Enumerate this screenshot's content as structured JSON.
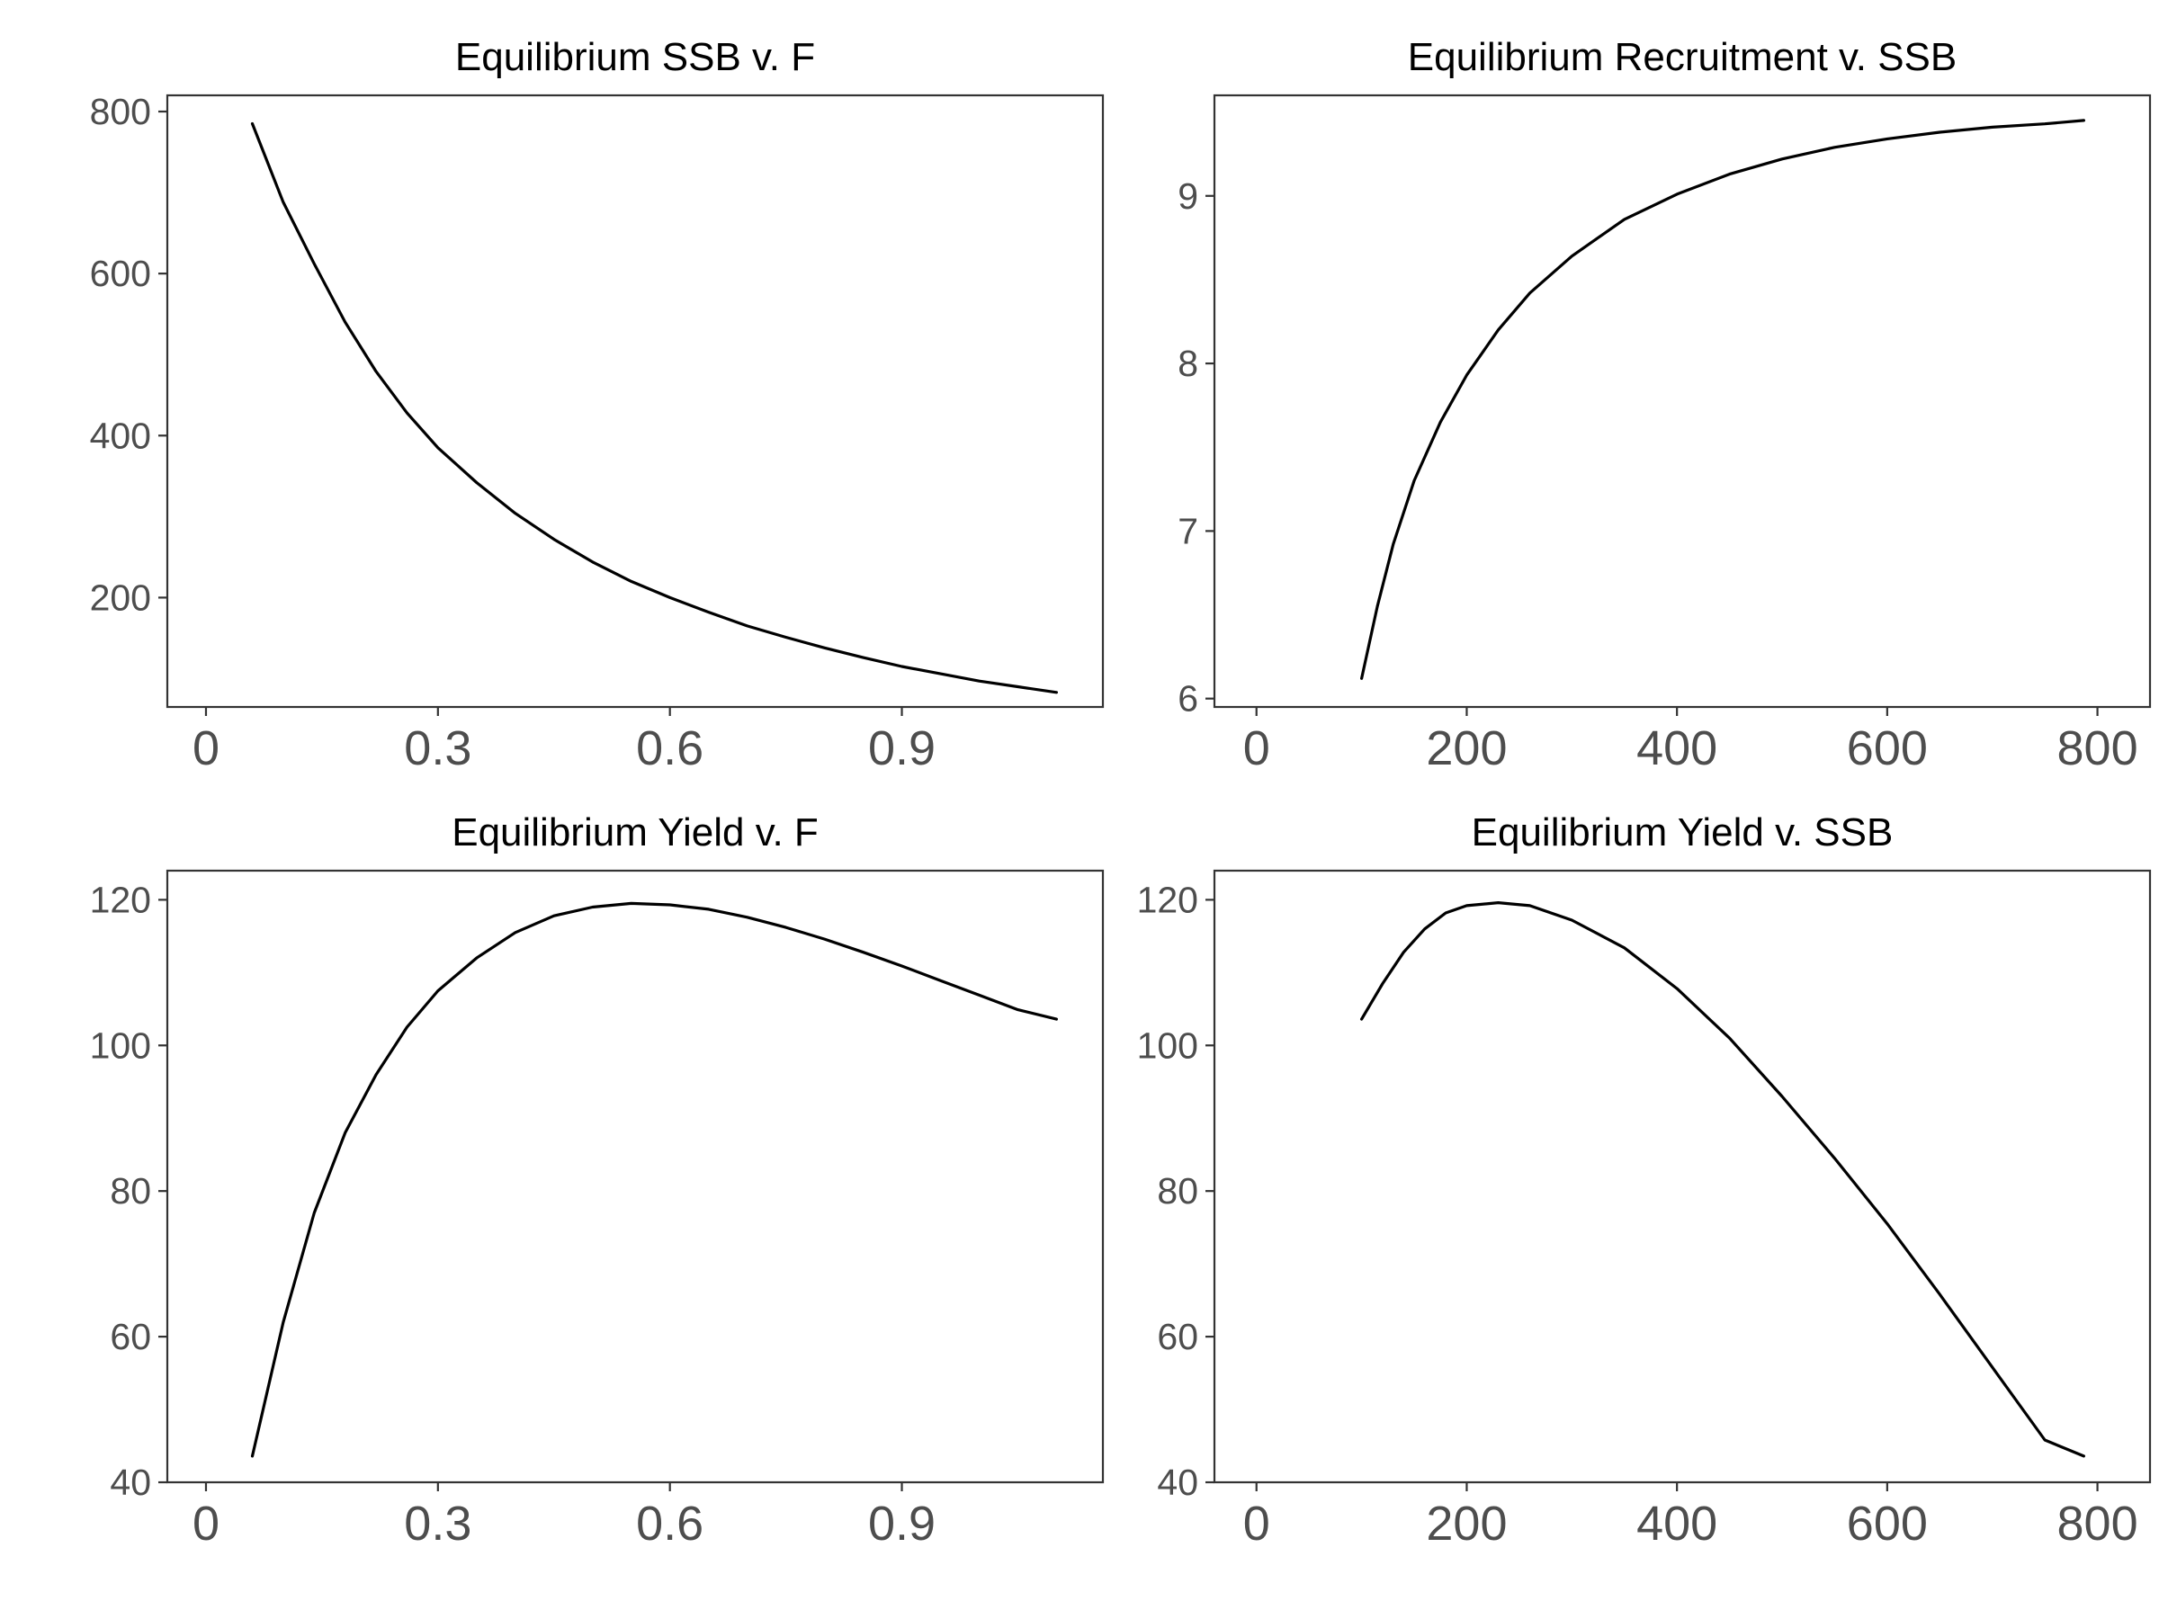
{
  "chart_data": [
    {
      "type": "line",
      "title": "Equilibrium SSB v. F",
      "xlabel": "",
      "ylabel": "",
      "xlim": [
        -0.05,
        1.16
      ],
      "ylim": [
        65,
        820
      ],
      "x_ticks": [
        0,
        0.3,
        0.6,
        0.9
      ],
      "x_tick_labels": [
        "0",
        "0.3",
        "0.6",
        "0.9"
      ],
      "y_ticks": [
        200,
        400,
        600,
        800
      ],
      "y_tick_labels": [
        "200",
        "400",
        "600",
        "800"
      ],
      "grid": false,
      "x": [
        0.06,
        0.1,
        0.14,
        0.18,
        0.22,
        0.26,
        0.3,
        0.35,
        0.4,
        0.45,
        0.5,
        0.55,
        0.6,
        0.65,
        0.7,
        0.75,
        0.8,
        0.85,
        0.9,
        0.95,
        1.0,
        1.05,
        1.1
      ],
      "y": [
        785,
        688,
        612,
        540,
        479,
        428,
        385,
        342,
        304,
        272,
        244,
        220,
        200,
        182,
        165,
        151,
        138,
        126,
        115,
        106,
        97,
        90,
        83
      ]
    },
    {
      "type": "line",
      "title": "Equilibrium Recruitment v. SSB",
      "xlabel": "",
      "ylabel": "",
      "xlim": [
        -40,
        850
      ],
      "ylim": [
        5.95,
        9.6
      ],
      "x_ticks": [
        0,
        200,
        400,
        600,
        800
      ],
      "x_tick_labels": [
        "0",
        "200",
        "400",
        "600",
        "800"
      ],
      "y_ticks": [
        6,
        7,
        8,
        9
      ],
      "y_tick_labels": [
        "6",
        "7",
        "8",
        "9"
      ],
      "grid": false,
      "x": [
        100,
        115,
        130,
        150,
        175,
        200,
        230,
        260,
        300,
        350,
        400,
        450,
        500,
        550,
        600,
        650,
        700,
        750,
        787
      ],
      "y": [
        6.12,
        6.55,
        6.92,
        7.3,
        7.65,
        7.93,
        8.2,
        8.42,
        8.64,
        8.86,
        9.01,
        9.13,
        9.22,
        9.29,
        9.34,
        9.38,
        9.41,
        9.43,
        9.45
      ]
    },
    {
      "type": "line",
      "title": "Equilibrium Yield v. F",
      "xlabel": "",
      "ylabel": "",
      "xlim": [
        -0.05,
        1.16
      ],
      "ylim": [
        40,
        124
      ],
      "x_ticks": [
        0,
        0.3,
        0.6,
        0.9
      ],
      "x_tick_labels": [
        "0",
        "0.3",
        "0.6",
        "0.9"
      ],
      "y_ticks": [
        40,
        60,
        80,
        100,
        120
      ],
      "y_tick_labels": [
        "40",
        "60",
        "80",
        "100",
        "120"
      ],
      "grid": false,
      "x": [
        0.06,
        0.1,
        0.14,
        0.18,
        0.22,
        0.26,
        0.3,
        0.35,
        0.4,
        0.45,
        0.5,
        0.55,
        0.6,
        0.65,
        0.7,
        0.75,
        0.8,
        0.85,
        0.9,
        0.95,
        1.0,
        1.05,
        1.1
      ],
      "y": [
        43.6,
        62,
        77,
        88,
        96,
        102.5,
        107.5,
        112,
        115.5,
        117.8,
        119,
        119.5,
        119.3,
        118.7,
        117.6,
        116.2,
        114.6,
        112.8,
        110.9,
        108.9,
        106.9,
        104.9,
        103.6
      ]
    },
    {
      "type": "line",
      "title": "Equilibrium Yield v. SSB",
      "xlabel": "",
      "ylabel": "",
      "xlim": [
        -40,
        850
      ],
      "ylim": [
        40,
        124
      ],
      "x_ticks": [
        0,
        200,
        400,
        600,
        800
      ],
      "x_tick_labels": [
        "0",
        "200",
        "400",
        "600",
        "800"
      ],
      "y_ticks": [
        40,
        60,
        80,
        100,
        120
      ],
      "y_tick_labels": [
        "40",
        "60",
        "80",
        "100",
        "120"
      ],
      "grid": false,
      "x": [
        100,
        120,
        140,
        160,
        180,
        200,
        230,
        260,
        300,
        350,
        400,
        450,
        500,
        550,
        600,
        650,
        700,
        750,
        787
      ],
      "y": [
        103.6,
        108.5,
        112.8,
        116,
        118.2,
        119.2,
        119.6,
        119.2,
        117.2,
        113.4,
        107.8,
        101,
        93,
        84.5,
        75.5,
        65.8,
        55.8,
        45.8,
        43.6
      ]
    }
  ]
}
